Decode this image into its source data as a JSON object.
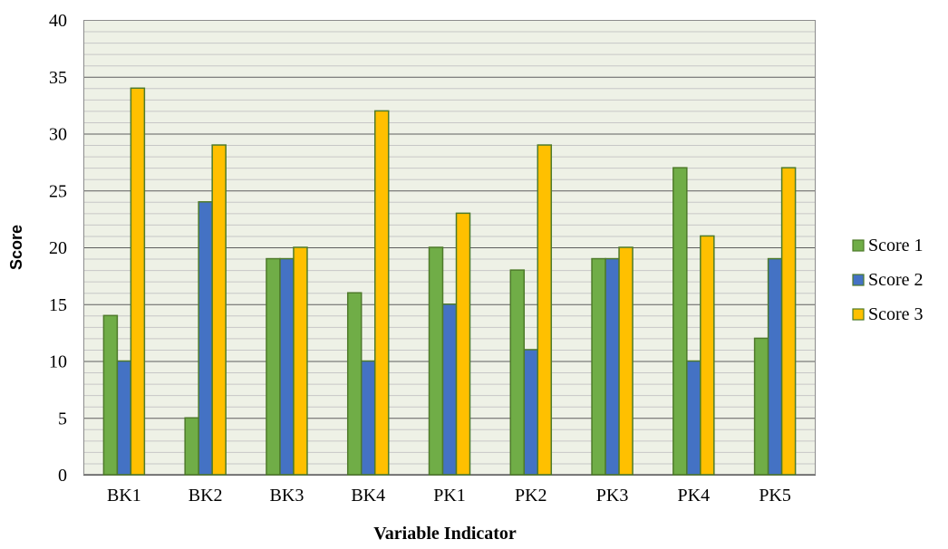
{
  "chart_data": {
    "type": "bar",
    "title": "",
    "xlabel": "Variable Indicator",
    "ylabel": "Score",
    "categories": [
      "BK1",
      "BK2",
      "BK3",
      "BK4",
      "PK1",
      "PK2",
      "PK3",
      "PK4",
      "PK5"
    ],
    "series": [
      {
        "name": "Score 1",
        "color": "#70AD47",
        "values": [
          14,
          5,
          19,
          16,
          20,
          18,
          19,
          27,
          12
        ]
      },
      {
        "name": "Score 2",
        "color": "#4472C4",
        "values": [
          10,
          24,
          19,
          10,
          15,
          11,
          19,
          10,
          19
        ]
      },
      {
        "name": "Score 3",
        "color": "#FFC000",
        "values": [
          34,
          29,
          20,
          32,
          23,
          29,
          20,
          21,
          27
        ]
      }
    ],
    "ylim": [
      0,
      40
    ],
    "yticks": [
      0,
      5,
      10,
      15,
      20,
      25,
      30,
      35,
      40
    ],
    "minor_grid_step": 1,
    "grid": true,
    "legend_position": "right",
    "plot_background": "#EEF1E6",
    "bar_outline_color": "#4E7A2A"
  }
}
